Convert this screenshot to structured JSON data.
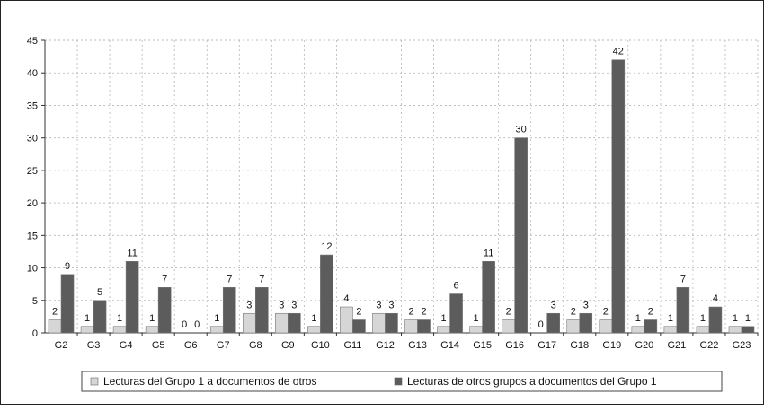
{
  "chart_data": {
    "type": "bar",
    "categories": [
      "G2",
      "G3",
      "G4",
      "G5",
      "G6",
      "G7",
      "G8",
      "G9",
      "G10",
      "G11",
      "G12",
      "G13",
      "G14",
      "G15",
      "G16",
      "G17",
      "G18",
      "G19",
      "G20",
      "G21",
      "G22",
      "G23"
    ],
    "series": [
      {
        "name": "Lecturas del Grupo 1 a documentos de otros",
        "color": "#d6d6d6",
        "values": [
          2,
          1,
          1,
          1,
          0,
          1,
          3,
          3,
          1,
          4,
          3,
          2,
          1,
          1,
          2,
          0,
          2,
          2,
          1,
          1,
          1,
          1
        ]
      },
      {
        "name": "Lecturas de otros grupos a documentos del Grupo 1",
        "color": "#5c5c5c",
        "values": [
          9,
          5,
          11,
          7,
          0,
          7,
          7,
          3,
          12,
          2,
          3,
          2,
          6,
          11,
          30,
          3,
          3,
          42,
          2,
          7,
          4,
          1
        ]
      }
    ],
    "ylim": [
      0,
      45
    ],
    "yticks": [
      0,
      5,
      10,
      15,
      20,
      25,
      30,
      35,
      40,
      45
    ],
    "grid": true,
    "legend_position": "bottom",
    "data_labels": true
  }
}
